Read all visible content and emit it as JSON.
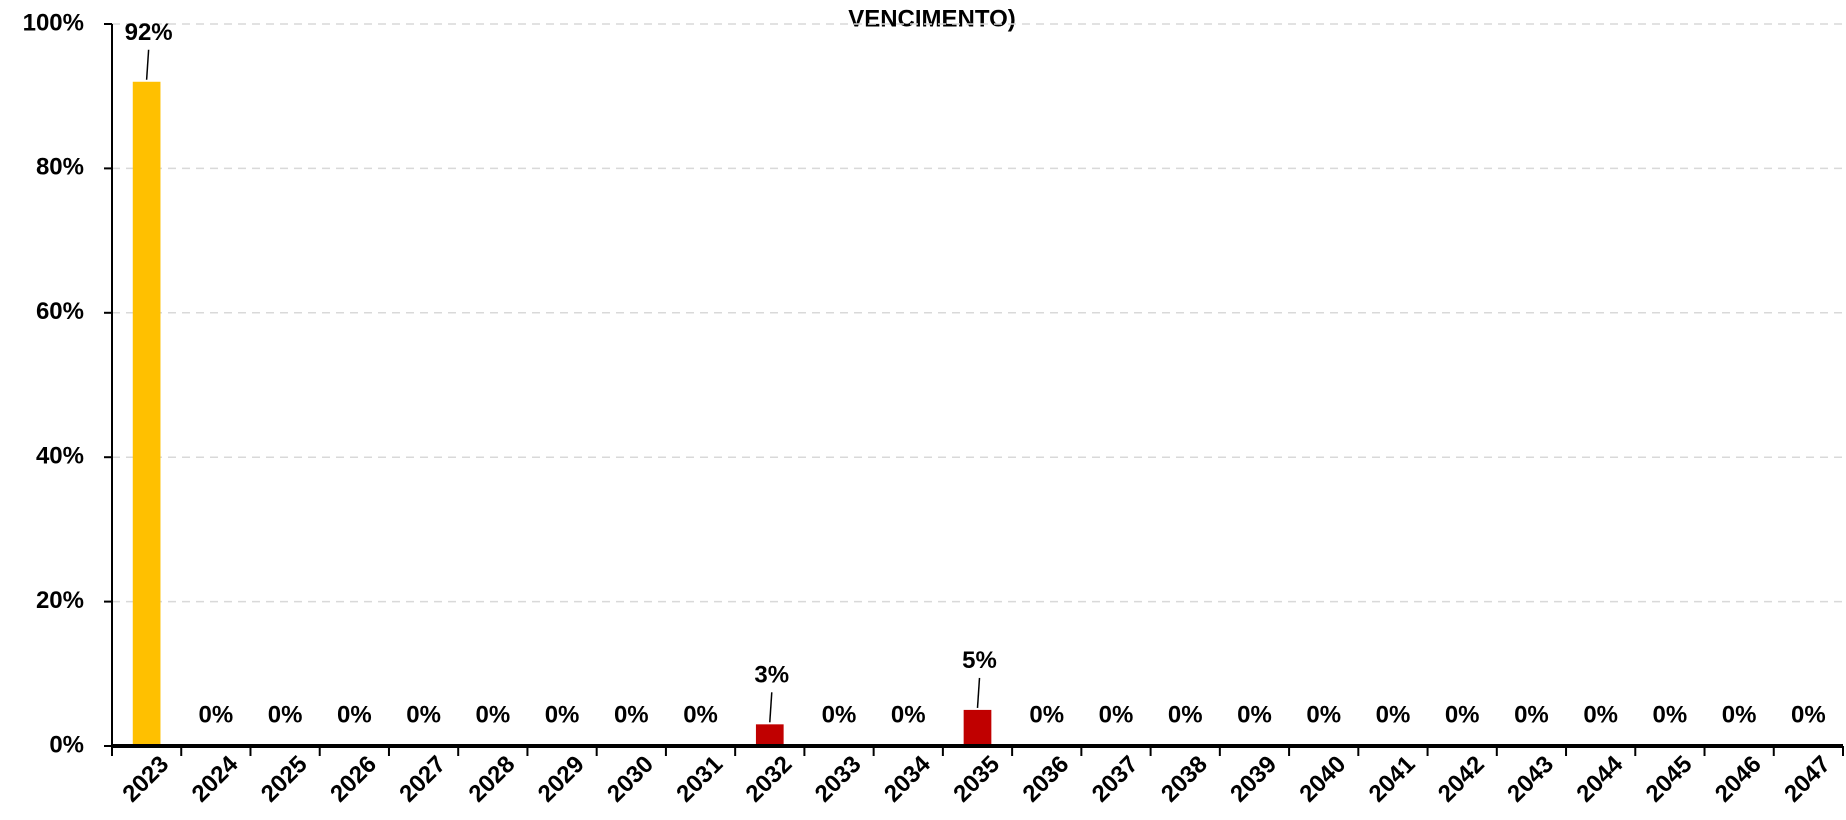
{
  "chart_data": {
    "type": "bar",
    "title": "VENCIMENTO)",
    "categories": [
      "2023",
      "2024",
      "2025",
      "2026",
      "2027",
      "2028",
      "2029",
      "2030",
      "2031",
      "2032",
      "2033",
      "2034",
      "2035",
      "2036",
      "2037",
      "2038",
      "2039",
      "2040",
      "2041",
      "2042",
      "2043",
      "2044",
      "2045",
      "2046",
      "2047"
    ],
    "values": [
      92,
      0,
      0,
      0,
      0,
      0,
      0,
      0,
      0,
      3,
      0,
      0,
      5,
      0,
      0,
      0,
      0,
      0,
      0,
      0,
      0,
      0,
      0,
      0,
      0
    ],
    "value_labels": [
      "92%",
      "0%",
      "0%",
      "0%",
      "0%",
      "0%",
      "0%",
      "0%",
      "0%",
      "3%",
      "0%",
      "0%",
      "5%",
      "0%",
      "0%",
      "0%",
      "0%",
      "0%",
      "0%",
      "0%",
      "0%",
      "0%",
      "0%",
      "0%",
      "0%"
    ],
    "colors": [
      "#FFC000",
      "#FFC000",
      "#FFC000",
      "#FFC000",
      "#FFC000",
      "#FFC000",
      "#FFC000",
      "#FFC000",
      "#FFC000",
      "#C00000",
      "#FFC000",
      "#FFC000",
      "#C00000",
      "#FFC000",
      "#FFC000",
      "#FFC000",
      "#FFC000",
      "#FFC000",
      "#FFC000",
      "#FFC000",
      "#FFC000",
      "#FFC000",
      "#FFC000",
      "#FFC000",
      "#FFC000"
    ],
    "ylim": [
      0,
      100
    ],
    "yticks": [
      {
        "value": 0,
        "label": "0%"
      },
      {
        "value": 20,
        "label": "20%"
      },
      {
        "value": 40,
        "label": "40%"
      },
      {
        "value": 60,
        "label": "60%"
      },
      {
        "value": 80,
        "label": "80%"
      },
      {
        "value": 100,
        "label": "100%"
      }
    ],
    "grid": true
  }
}
